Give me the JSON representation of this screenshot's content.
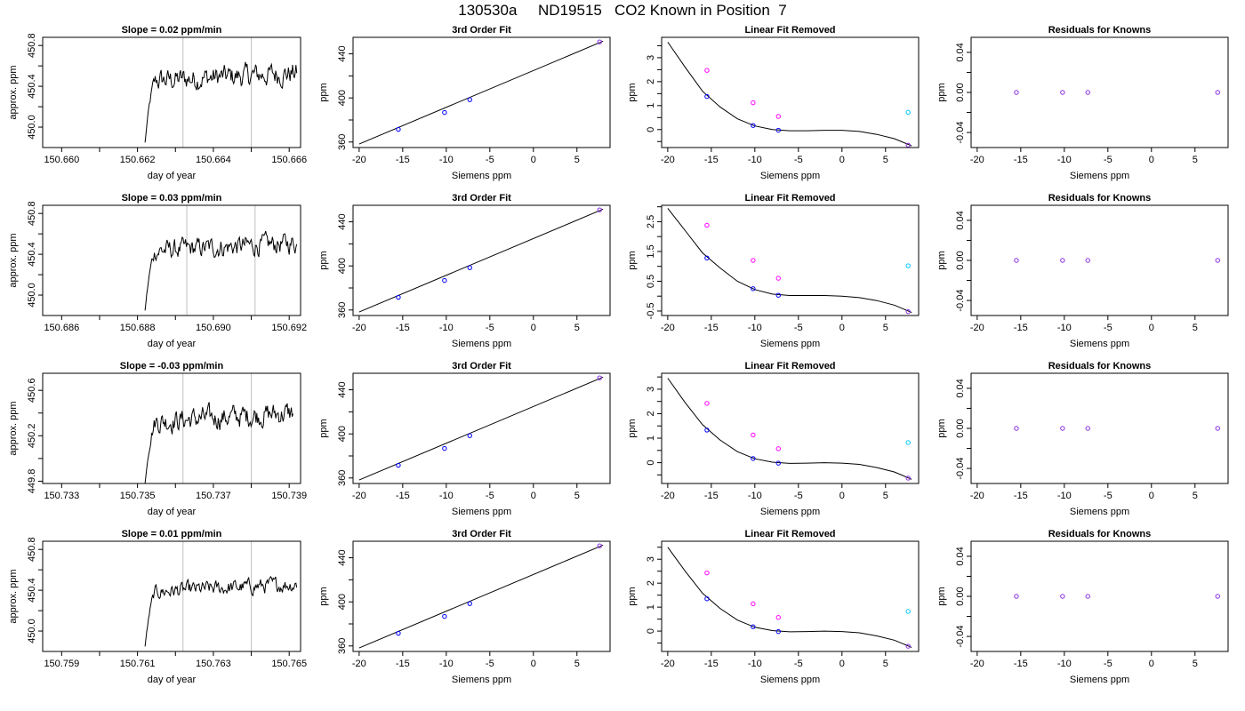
{
  "title": "130530a     ND19515   CO2 Known in Position  7",
  "colors": {
    "line": "#000000",
    "vline": "#c0c0c0",
    "blue": "#0000ff",
    "magenta": "#ff00ff",
    "cyan": "#00c8ff",
    "purple": "#8a2be2"
  },
  "chart_data": [
    {
      "type": "line",
      "row": 1,
      "title": "Slope =  0.02  ppm/min",
      "xlabel": "day of year",
      "ylabel": "approx. ppm",
      "xlim": [
        150.6595,
        150.6663
      ],
      "ylim": [
        449.8,
        450.88
      ],
      "xticks": [
        "150.660",
        "150.662",
        "150.664",
        "150.666"
      ],
      "yticks": [
        "450.0",
        "450.4",
        "450.8"
      ],
      "vlines": [
        150.6632,
        150.665
      ],
      "signal_start": 150.6622,
      "signal_end": 150.6662,
      "baseline": 449.85,
      "plateau": 450.45,
      "noise": 0.09
    },
    {
      "type": "scatter",
      "row": 1,
      "title": "3rd Order Fit",
      "xlabel": "Siemens ppm",
      "ylabel": "ppm",
      "xlim": [
        -20.7,
        8.8
      ],
      "ylim": [
        355,
        455
      ],
      "xticks": [
        "-20",
        "-15",
        "-10",
        "-5",
        "0",
        "5"
      ],
      "yticks": [
        "360",
        "400",
        "440"
      ],
      "points": [
        [
          -15.5,
          371.5
        ],
        [
          -10.2,
          386.8
        ],
        [
          -7.3,
          398.4
        ],
        [
          7.6,
          450.8
        ]
      ],
      "fit_line": [
        [
          -20,
          358.2
        ],
        [
          8,
          451.5
        ]
      ]
    },
    {
      "type": "scatter",
      "row": 1,
      "title": "Linear Fit Removed",
      "xlabel": "Siemens ppm",
      "ylabel": "ppm",
      "xlim": [
        -20.7,
        8.8
      ],
      "ylim": [
        -0.75,
        3.85
      ],
      "xticks": [
        "-20",
        "-15",
        "-10",
        "-5",
        "0",
        "5"
      ],
      "yticks": [
        "0",
        "1",
        "2",
        "3"
      ],
      "fit_points": [
        [
          -15.5,
          1.38
        ],
        [
          -10.2,
          0.17
        ],
        [
          -7.3,
          -0.03
        ],
        [
          7.6,
          -0.65
        ]
      ],
      "magenta_points": [
        [
          -15.5,
          2.47
        ],
        [
          -10.2,
          1.12
        ],
        [
          -7.3,
          0.55
        ]
      ],
      "cyan_points": [
        [
          7.6,
          0.72
        ]
      ],
      "curve": [
        [
          -20,
          3.65
        ],
        [
          -18,
          2.6
        ],
        [
          -16,
          1.6
        ],
        [
          -14,
          0.95
        ],
        [
          -12,
          0.45
        ],
        [
          -10,
          0.15
        ],
        [
          -8,
          0.0
        ],
        [
          -6,
          -0.05
        ],
        [
          -4,
          -0.05
        ],
        [
          -2,
          -0.03
        ],
        [
          0,
          -0.03
        ],
        [
          2,
          -0.08
        ],
        [
          4,
          -0.2
        ],
        [
          6,
          -0.38
        ],
        [
          8,
          -0.68
        ]
      ]
    },
    {
      "type": "scatter",
      "row": 1,
      "title": "Residuals for Knowns",
      "xlabel": "Siemens ppm",
      "ylabel": "ppm",
      "xlim": [
        -20.7,
        8.8
      ],
      "ylim": [
        -0.055,
        0.055
      ],
      "xticks": [
        "-20",
        "-15",
        "-10",
        "-5",
        "0",
        "5"
      ],
      "yticks": [
        "-0.04",
        "0.00",
        "0.04"
      ],
      "points": [
        [
          -15.5,
          0.0
        ],
        [
          -10.2,
          0.0
        ],
        [
          -7.3,
          0.0
        ],
        [
          7.6,
          0.0
        ]
      ]
    },
    {
      "type": "line",
      "row": 2,
      "title": "Slope =  0.03  ppm/min",
      "xlabel": "day of year",
      "ylabel": "approx. ppm",
      "xlim": [
        150.6855,
        150.6923
      ],
      "ylim": [
        449.8,
        450.88
      ],
      "xticks": [
        "150.686",
        "150.688",
        "150.690",
        "150.692"
      ],
      "yticks": [
        "450.0",
        "450.4",
        "450.8"
      ],
      "vlines": [
        150.6893,
        150.6911
      ],
      "signal_start": 150.6882,
      "signal_end": 150.6922,
      "baseline": 449.85,
      "plateau": 450.43,
      "noise": 0.08
    },
    {
      "type": "scatter",
      "row": 2,
      "title": "3rd Order Fit",
      "xlabel": "Siemens ppm",
      "ylabel": "ppm",
      "xlim": [
        -20.7,
        8.8
      ],
      "ylim": [
        355,
        455
      ],
      "xticks": [
        "-20",
        "-15",
        "-10",
        "-5",
        "0",
        "5"
      ],
      "yticks": [
        "360",
        "400",
        "440"
      ],
      "points": [
        [
          -15.5,
          371.5
        ],
        [
          -10.2,
          386.8
        ],
        [
          -7.3,
          398.4
        ],
        [
          7.6,
          450.8
        ]
      ],
      "fit_line": [
        [
          -20,
          358.2
        ],
        [
          8,
          451.5
        ]
      ]
    },
    {
      "type": "scatter",
      "row": 2,
      "title": "Linear Fit Removed",
      "xlabel": "Siemens ppm",
      "ylabel": "ppm",
      "xlim": [
        -20.7,
        8.8
      ],
      "ylim": [
        -0.65,
        3.05
      ],
      "xticks": [
        "-20",
        "-15",
        "-10",
        "-5",
        "0",
        "5"
      ],
      "yticks": [
        "-0.5",
        "0.5",
        "1.5",
        "2.5"
      ],
      "fit_points": [
        [
          -15.5,
          1.28
        ],
        [
          -10.2,
          0.25
        ],
        [
          -7.3,
          0.03
        ],
        [
          7.6,
          -0.52
        ]
      ],
      "magenta_points": [
        [
          -15.5,
          2.38
        ],
        [
          -10.2,
          1.2
        ],
        [
          -7.3,
          0.6
        ]
      ],
      "cyan_points": [
        [
          7.6,
          1.02
        ]
      ],
      "curve": [
        [
          -20,
          2.95
        ],
        [
          -18,
          2.2
        ],
        [
          -16,
          1.45
        ],
        [
          -14,
          0.95
        ],
        [
          -12,
          0.5
        ],
        [
          -10,
          0.22
        ],
        [
          -8,
          0.07
        ],
        [
          -6,
          0.02
        ],
        [
          -4,
          0.02
        ],
        [
          -2,
          0.02
        ],
        [
          0,
          0.0
        ],
        [
          2,
          -0.05
        ],
        [
          4,
          -0.15
        ],
        [
          6,
          -0.3
        ],
        [
          8,
          -0.55
        ]
      ]
    },
    {
      "type": "scatter",
      "row": 2,
      "title": "Residuals for Knowns",
      "xlabel": "Siemens ppm",
      "ylabel": "ppm",
      "xlim": [
        -20.7,
        8.8
      ],
      "ylim": [
        -0.055,
        0.055
      ],
      "xticks": [
        "-20",
        "-15",
        "-10",
        "-5",
        "0",
        "5"
      ],
      "yticks": [
        "-0.04",
        "0.00",
        "0.04"
      ],
      "points": [
        [
          -15.5,
          0.0
        ],
        [
          -10.2,
          0.0
        ],
        [
          -7.3,
          0.0
        ],
        [
          7.6,
          0.0
        ]
      ]
    },
    {
      "type": "line",
      "row": 3,
      "title": "Slope =  -0.03  ppm/min",
      "xlabel": "day of year",
      "ylabel": "approx. ppm",
      "xlim": [
        150.7325,
        150.7393
      ],
      "ylim": [
        449.78,
        450.75
      ],
      "xticks": [
        "150.733",
        "150.735",
        "150.737",
        "150.739"
      ],
      "yticks": [
        "449.8",
        "450.2",
        "450.6"
      ],
      "vlines": [
        150.7362,
        150.738
      ],
      "signal_start": 150.7352,
      "signal_end": 150.7391,
      "baseline": 449.78,
      "plateau": 450.32,
      "noise": 0.08
    },
    {
      "type": "scatter",
      "row": 3,
      "title": "3rd Order Fit",
      "xlabel": "Siemens ppm",
      "ylabel": "ppm",
      "xlim": [
        -20.7,
        8.8
      ],
      "ylim": [
        355,
        455
      ],
      "xticks": [
        "-20",
        "-15",
        "-10",
        "-5",
        "0",
        "5"
      ],
      "yticks": [
        "360",
        "400",
        "440"
      ],
      "points": [
        [
          -15.5,
          371.5
        ],
        [
          -10.2,
          386.8
        ],
        [
          -7.3,
          398.4
        ],
        [
          7.6,
          450.8
        ]
      ],
      "fit_line": [
        [
          -20,
          358.2
        ],
        [
          8,
          451.5
        ]
      ]
    },
    {
      "type": "scatter",
      "row": 3,
      "title": "Linear Fit Removed",
      "xlabel": "Siemens ppm",
      "ylabel": "ppm",
      "xlim": [
        -20.7,
        8.8
      ],
      "ylim": [
        -0.85,
        3.65
      ],
      "xticks": [
        "-20",
        "-15",
        "-10",
        "-5",
        "0",
        "5"
      ],
      "yticks": [
        "0",
        "1",
        "2",
        "3"
      ],
      "fit_points": [
        [
          -15.5,
          1.33
        ],
        [
          -10.2,
          0.17
        ],
        [
          -7.3,
          -0.02
        ],
        [
          7.6,
          -0.63
        ]
      ],
      "magenta_points": [
        [
          -15.5,
          2.42
        ],
        [
          -10.2,
          1.13
        ],
        [
          -7.3,
          0.57
        ]
      ],
      "cyan_points": [
        [
          7.6,
          0.82
        ]
      ],
      "curve": [
        [
          -20,
          3.45
        ],
        [
          -18,
          2.45
        ],
        [
          -16,
          1.55
        ],
        [
          -14,
          0.93
        ],
        [
          -12,
          0.45
        ],
        [
          -10,
          0.16
        ],
        [
          -8,
          0.02
        ],
        [
          -6,
          -0.03
        ],
        [
          -4,
          -0.02
        ],
        [
          -2,
          0.0
        ],
        [
          0,
          -0.02
        ],
        [
          2,
          -0.07
        ],
        [
          4,
          -0.2
        ],
        [
          6,
          -0.38
        ],
        [
          8,
          -0.68
        ]
      ]
    },
    {
      "type": "scatter",
      "row": 3,
      "title": "Residuals for Knowns",
      "xlabel": "Siemens ppm",
      "ylabel": "ppm",
      "xlim": [
        -20.7,
        8.8
      ],
      "ylim": [
        -0.055,
        0.055
      ],
      "xticks": [
        "-20",
        "-15",
        "-10",
        "-5",
        "0",
        "5"
      ],
      "yticks": [
        "-0.04",
        "0.00",
        "0.04"
      ],
      "points": [
        [
          -15.5,
          0.0
        ],
        [
          -10.2,
          0.0
        ],
        [
          -7.3,
          0.0
        ],
        [
          7.6,
          0.0
        ]
      ]
    },
    {
      "type": "line",
      "row": 4,
      "title": "Slope =  0.01  ppm/min",
      "xlabel": "day of year",
      "ylabel": "approx. ppm",
      "xlim": [
        150.7585,
        150.7653
      ],
      "ylim": [
        449.8,
        450.88
      ],
      "xticks": [
        "150.759",
        "150.761",
        "150.763",
        "150.765"
      ],
      "yticks": [
        "450.0",
        "450.4",
        "450.8"
      ],
      "vlines": [
        150.7622,
        150.764
      ],
      "signal_start": 150.7612,
      "signal_end": 150.7652,
      "baseline": 449.85,
      "plateau": 450.38,
      "noise": 0.06
    },
    {
      "type": "scatter",
      "row": 4,
      "title": "3rd Order Fit",
      "xlabel": "Siemens ppm",
      "ylabel": "ppm",
      "xlim": [
        -20.7,
        8.8
      ],
      "ylim": [
        355,
        455
      ],
      "xticks": [
        "-20",
        "-15",
        "-10",
        "-5",
        "0",
        "5"
      ],
      "yticks": [
        "360",
        "400",
        "440"
      ],
      "points": [
        [
          -15.5,
          371.5
        ],
        [
          -10.2,
          386.8
        ],
        [
          -7.3,
          398.4
        ],
        [
          7.6,
          450.8
        ]
      ],
      "fit_line": [
        [
          -20,
          358.2
        ],
        [
          8,
          451.5
        ]
      ]
    },
    {
      "type": "scatter",
      "row": 4,
      "title": "Linear Fit Removed",
      "xlabel": "Siemens ppm",
      "ylabel": "ppm",
      "xlim": [
        -20.7,
        8.8
      ],
      "ylim": [
        -0.85,
        3.75
      ],
      "xticks": [
        "-20",
        "-15",
        "-10",
        "-5",
        "0",
        "5"
      ],
      "yticks": [
        "0",
        "1",
        "2",
        "3"
      ],
      "fit_points": [
        [
          -15.5,
          1.35
        ],
        [
          -10.2,
          0.18
        ],
        [
          -7.3,
          -0.02
        ],
        [
          7.6,
          -0.63
        ]
      ],
      "magenta_points": [
        [
          -15.5,
          2.43
        ],
        [
          -10.2,
          1.14
        ],
        [
          -7.3,
          0.57
        ]
      ],
      "cyan_points": [
        [
          7.6,
          0.82
        ]
      ],
      "curve": [
        [
          -20,
          3.5
        ],
        [
          -18,
          2.5
        ],
        [
          -16,
          1.58
        ],
        [
          -14,
          0.95
        ],
        [
          -12,
          0.46
        ],
        [
          -10,
          0.16
        ],
        [
          -8,
          0.02
        ],
        [
          -6,
          -0.03
        ],
        [
          -4,
          -0.02
        ],
        [
          -2,
          0.0
        ],
        [
          0,
          -0.02
        ],
        [
          2,
          -0.07
        ],
        [
          4,
          -0.2
        ],
        [
          6,
          -0.38
        ],
        [
          8,
          -0.68
        ]
      ]
    },
    {
      "type": "scatter",
      "row": 4,
      "title": "Residuals for Knowns",
      "xlabel": "Siemens ppm",
      "ylabel": "ppm",
      "xlim": [
        -20.7,
        8.8
      ],
      "ylim": [
        -0.055,
        0.055
      ],
      "xticks": [
        "-20",
        "-15",
        "-10",
        "-5",
        "0",
        "5"
      ],
      "yticks": [
        "-0.04",
        "0.00",
        "0.04"
      ],
      "points": [
        [
          -15.5,
          0.0
        ],
        [
          -10.2,
          0.0
        ],
        [
          -7.3,
          0.0
        ],
        [
          7.6,
          0.0
        ]
      ]
    }
  ]
}
